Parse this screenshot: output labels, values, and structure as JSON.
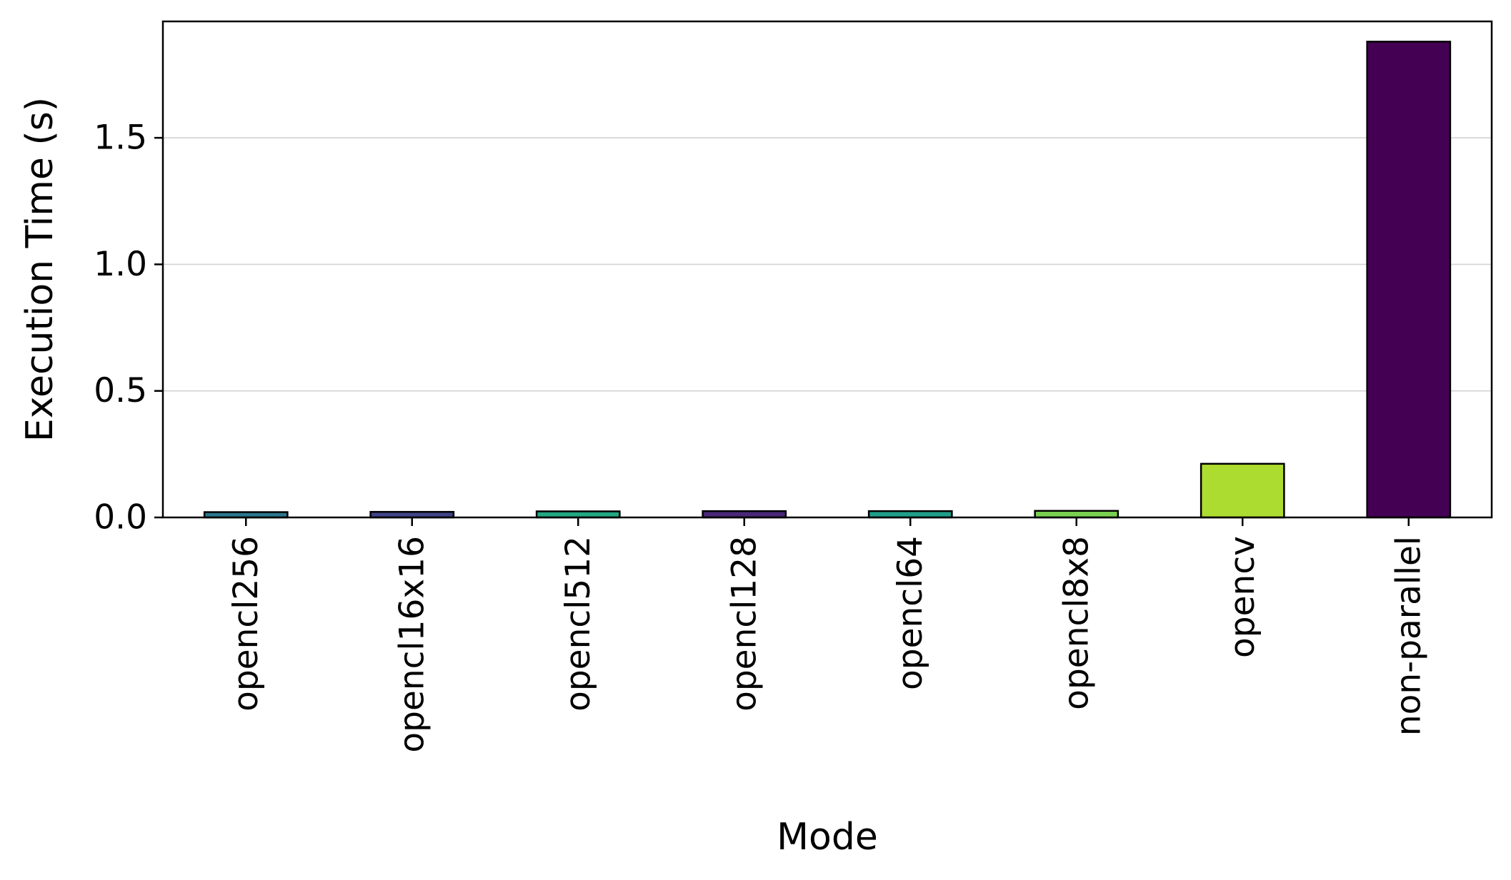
{
  "chart_data": {
    "type": "bar",
    "title": "",
    "xlabel": "Mode",
    "ylabel": "Execution Time (s)",
    "categories": [
      "opencl256",
      "opencl16x16",
      "opencl512",
      "opencl128",
      "opencl64",
      "opencl8x8",
      "opencv",
      "non-parallel"
    ],
    "values": [
      0.021,
      0.022,
      0.024,
      0.025,
      0.025,
      0.026,
      0.212,
      1.88
    ],
    "colors": [
      "#2a788e",
      "#414487",
      "#22a884",
      "#482878",
      "#1f9e89",
      "#7ad151",
      "#addc30",
      "#440154"
    ],
    "ylim": [
      0,
      1.96
    ],
    "yticks": [
      0.0,
      0.5,
      1.0,
      1.5
    ],
    "ytick_labels": [
      "0.0",
      "0.5",
      "1.0",
      "1.5"
    ],
    "grid": "y",
    "legend": "none"
  }
}
